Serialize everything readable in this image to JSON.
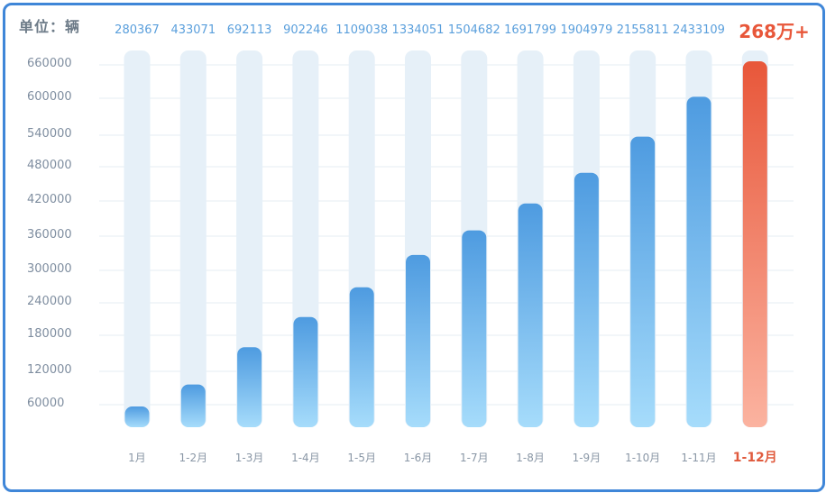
{
  "unit_label": "单位：辆",
  "colors": {
    "bar_blue_top": "#4e9be0",
    "bar_blue_bottom": "#a6dcfb",
    "bar_red_top": "#e8573a",
    "bar_red_bottom": "#fbb3a0",
    "track": "#e6f0f8",
    "frame": "#3f86d8"
  },
  "chart_data": {
    "type": "bar",
    "ylabel": "单位：辆",
    "y_ticks": [
      "660000",
      "600000",
      "540000",
      "480000",
      "420000",
      "360000",
      "300000",
      "240000",
      "180000",
      "120000",
      "60000"
    ],
    "categories": [
      "1月",
      "1-2月",
      "1-3月",
      "1-4月",
      "1-5月",
      "1-6月",
      "1-7月",
      "1-8月",
      "1-9月",
      "1-10月",
      "1-11月",
      "1-12月"
    ],
    "value_labels": [
      "280367",
      "433071",
      "692113",
      "902246",
      "1109038",
      "1334051",
      "1504682",
      "1691799",
      "1904979",
      "2155811",
      "2433109",
      "268万+"
    ],
    "values": [
      280367,
      433071,
      692113,
      902246,
      1109038,
      1334051,
      1504682,
      1691799,
      1904979,
      2155811,
      2433109,
      2680000
    ],
    "highlight_index": 11,
    "grid": true
  }
}
